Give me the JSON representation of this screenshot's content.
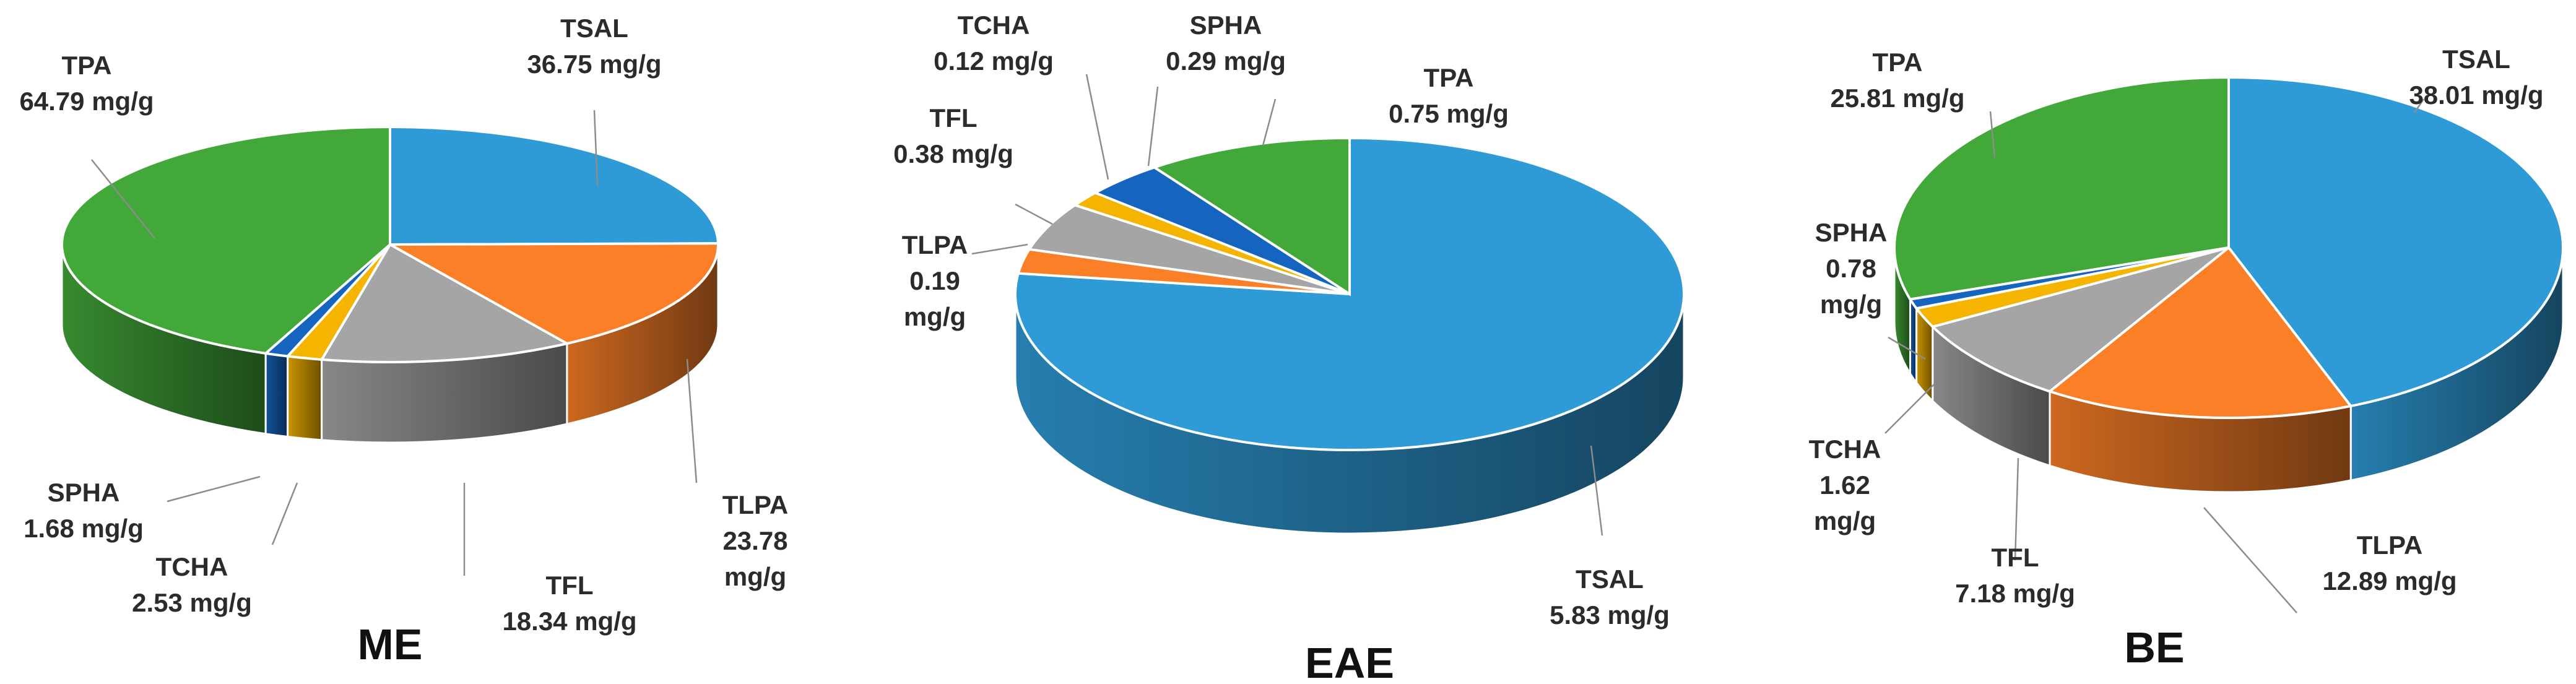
{
  "colors": {
    "TSAL": "#2E9AD6",
    "TLPA": "#FA7F27",
    "TFL": "#A5A5A5",
    "TCHA": "#F4B400",
    "SPHA": "#1565C0",
    "TPA": "#43A83A"
  },
  "chart_data": [
    {
      "type": "pie",
      "title": "ME",
      "order": [
        "TSAL",
        "TLPA",
        "TFL",
        "TCHA",
        "SPHA",
        "TPA"
      ],
      "values": [
        36.75,
        23.78,
        18.34,
        2.53,
        1.68,
        64.79
      ],
      "labels": [
        {
          "key": "TSAL",
          "lines": [
            "TSAL",
            "36.75 mg/g"
          ]
        },
        {
          "key": "TLPA",
          "lines": [
            "TLPA",
            "23.78",
            "mg/g"
          ]
        },
        {
          "key": "TFL",
          "lines": [
            "TFL",
            "18.34 mg/g"
          ]
        },
        {
          "key": "TCHA",
          "lines": [
            "TCHA",
            "2.53 mg/g"
          ]
        },
        {
          "key": "SPHA",
          "lines": [
            "SPHA",
            "1.68 mg/g"
          ]
        },
        {
          "key": "TPA",
          "lines": [
            "TPA",
            "64.79 mg/g"
          ]
        }
      ]
    },
    {
      "type": "pie",
      "title": "EAE",
      "order": [
        "TSAL",
        "TLPA",
        "TFL",
        "TCHA",
        "SPHA",
        "TPA"
      ],
      "values": [
        5.83,
        0.19,
        0.38,
        0.12,
        0.29,
        0.75
      ],
      "labels": [
        {
          "key": "TSAL",
          "lines": [
            "TSAL",
            "5.83 mg/g"
          ]
        },
        {
          "key": "TLPA",
          "lines": [
            "TLPA",
            "0.19",
            "mg/g"
          ]
        },
        {
          "key": "TFL",
          "lines": [
            "TFL",
            "0.38 mg/g"
          ]
        },
        {
          "key": "TCHA",
          "lines": [
            "TCHA",
            "0.12 mg/g"
          ]
        },
        {
          "key": "SPHA",
          "lines": [
            "SPHA",
            "0.29 mg/g"
          ]
        },
        {
          "key": "TPA",
          "lines": [
            "TPA",
            "0.75 mg/g"
          ]
        }
      ]
    },
    {
      "type": "pie",
      "title": "BE",
      "order": [
        "TSAL",
        "TLPA",
        "TFL",
        "TCHA",
        "SPHA",
        "TPA"
      ],
      "values": [
        38.01,
        12.89,
        7.18,
        1.62,
        0.78,
        25.81
      ],
      "labels": [
        {
          "key": "TSAL",
          "lines": [
            "TSAL",
            "38.01 mg/g"
          ]
        },
        {
          "key": "TLPA",
          "lines": [
            "TLPA",
            "12.89 mg/g"
          ]
        },
        {
          "key": "TFL",
          "lines": [
            "TFL",
            "7.18 mg/g"
          ]
        },
        {
          "key": "TCHA",
          "lines": [
            "TCHA",
            "1.62",
            "mg/g"
          ]
        },
        {
          "key": "SPHA",
          "lines": [
            "SPHA",
            "0.78",
            "mg/g"
          ]
        },
        {
          "key": "TPA",
          "lines": [
            "TPA",
            "25.81 mg/g"
          ]
        }
      ]
    }
  ]
}
